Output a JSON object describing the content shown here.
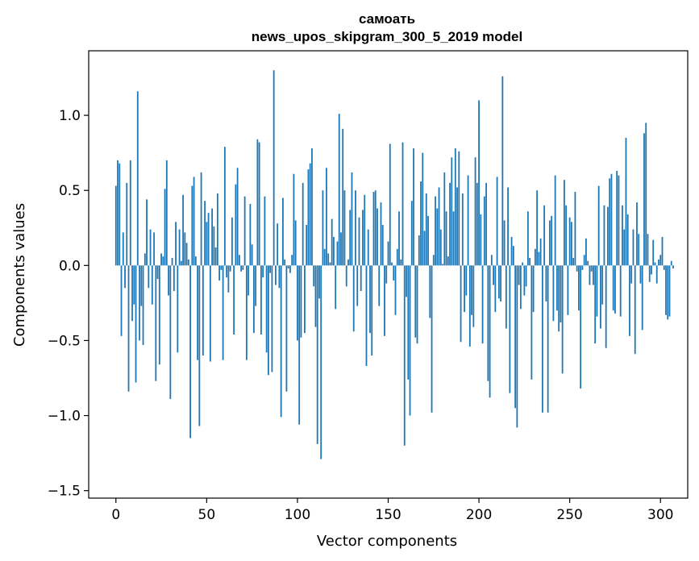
{
  "chart_data": {
    "type": "bar",
    "title": "самоать",
    "subtitle": "news_upos_skipgram_300_5_2019 model",
    "xlabel": "Vector components",
    "ylabel": "Components values",
    "xlim": [
      -15,
      315
    ],
    "ylim": [
      -1.55,
      1.43
    ],
    "x_ticks": [
      0,
      50,
      100,
      150,
      200,
      250,
      300
    ],
    "x_tick_labels": [
      "0",
      "50",
      "100",
      "150",
      "200",
      "250",
      "300"
    ],
    "y_ticks": [
      -1.5,
      -1.0,
      -0.5,
      0.0,
      0.5,
      1.0
    ],
    "y_tick_labels": [
      "−1.5",
      "−1.0",
      "−0.5",
      "0.0",
      "0.5",
      "1.0"
    ],
    "bar_color": "#1f77b4",
    "grid": false,
    "legend": "none",
    "values": [
      0.53,
      0.7,
      0.68,
      -0.47,
      0.22,
      -0.15,
      0.55,
      -0.84,
      0.7,
      -0.37,
      -0.26,
      -0.78,
      1.16,
      -0.5,
      -0.27,
      -0.53,
      0.08,
      0.44,
      -0.15,
      0.24,
      -0.26,
      0.22,
      -0.77,
      -0.09,
      -0.66,
      0.08,
      0.06,
      0.51,
      0.7,
      -0.2,
      -0.89,
      0.05,
      -0.17,
      0.29,
      -0.58,
      0.24,
      0.03,
      0.47,
      0.22,
      0.15,
      0.04,
      -1.15,
      0.53,
      0.59,
      0.06,
      -0.63,
      -1.07,
      0.62,
      -0.6,
      0.43,
      0.29,
      0.35,
      -0.64,
      0.38,
      0.26,
      0.12,
      0.48,
      -0.1,
      -0.03,
      -0.63,
      0.79,
      -0.08,
      -0.18,
      -0.04,
      0.32,
      -0.46,
      0.54,
      0.65,
      0.07,
      -0.04,
      -0.03,
      0.46,
      -0.63,
      -0.2,
      0.41,
      0.14,
      -0.45,
      -0.27,
      0.84,
      0.82,
      -0.46,
      -0.08,
      0.46,
      -0.58,
      -0.73,
      -0.05,
      -0.71,
      1.3,
      -0.13,
      0.28,
      -0.15,
      -1.01,
      0.45,
      0.04,
      -0.84,
      -0.02,
      -0.05,
      0.07,
      0.61,
      0.3,
      -0.5,
      -1.06,
      -0.48,
      0.55,
      -0.45,
      0.27,
      0.64,
      0.68,
      0.78,
      -0.14,
      -0.41,
      -1.19,
      -0.22,
      -1.29,
      0.5,
      0.11,
      0.65,
      0.08,
      0.02,
      0.31,
      0.19,
      -0.29,
      0.16,
      1.01,
      0.22,
      0.91,
      0.5,
      -0.14,
      0.04,
      0.37,
      0.62,
      -0.44,
      0.5,
      -0.27,
      0.32,
      -0.17,
      0.37,
      0.47,
      -0.67,
      0.24,
      -0.45,
      -0.6,
      0.49,
      0.5,
      0.38,
      -0.27,
      0.42,
      0.27,
      -0.47,
      -0.12,
      0.16,
      0.81,
      0.02,
      -0.1,
      -0.33,
      0.11,
      0.36,
      0.04,
      0.82,
      -1.2,
      -0.21,
      -0.76,
      -1.0,
      0.43,
      0.78,
      -0.48,
      -0.52,
      0.2,
      0.56,
      0.75,
      0.23,
      0.48,
      0.33,
      -0.35,
      -0.98,
      0.07,
      0.46,
      0.38,
      0.52,
      0.24,
      0.01,
      0.62,
      0.36,
      0.06,
      0.55,
      0.72,
      0.36,
      0.78,
      0.52,
      0.76,
      -0.51,
      0.48,
      -0.31,
      -0.2,
      0.6,
      -0.54,
      -0.33,
      -0.41,
      0.72,
      0.55,
      1.1,
      0.34,
      -0.52,
      0.46,
      0.55,
      -0.77,
      -0.88,
      0.07,
      -0.13,
      -0.31,
      0.59,
      -0.22,
      -0.24,
      1.26,
      0.3,
      -0.42,
      0.52,
      -0.85,
      0.19,
      0.13,
      -0.95,
      -1.08,
      -0.13,
      -0.29,
      0.02,
      -0.2,
      -0.14,
      0.36,
      0.05,
      -0.76,
      -0.31,
      0.11,
      0.5,
      0.09,
      0.18,
      -0.98,
      0.4,
      -0.24,
      -0.98,
      0.3,
      0.33,
      -0.37,
      0.6,
      -0.3,
      -0.44,
      -0.38,
      -0.72,
      0.57,
      0.4,
      -0.33,
      0.32,
      0.29,
      0.05,
      0.49,
      -0.04,
      -0.3,
      -0.82,
      -0.03,
      0.07,
      0.18,
      0.03,
      -0.13,
      -0.04,
      -0.13,
      -0.52,
      -0.34,
      0.53,
      -0.42,
      -0.26,
      0.4,
      -0.55,
      0.39,
      0.58,
      0.61,
      -0.3,
      -0.32,
      0.63,
      0.6,
      -0.34,
      0.4,
      0.24,
      0.85,
      0.34,
      -0.47,
      -0.12,
      0.24,
      -0.59,
      0.42,
      0.21,
      -0.12,
      -0.43,
      0.88,
      0.95,
      0.21,
      -0.11,
      -0.06,
      0.17,
      0.02,
      -0.12,
      0.04,
      0.07,
      0.19,
      -0.03,
      -0.33,
      -0.36,
      -0.34,
      0.03,
      -0.02
    ]
  }
}
